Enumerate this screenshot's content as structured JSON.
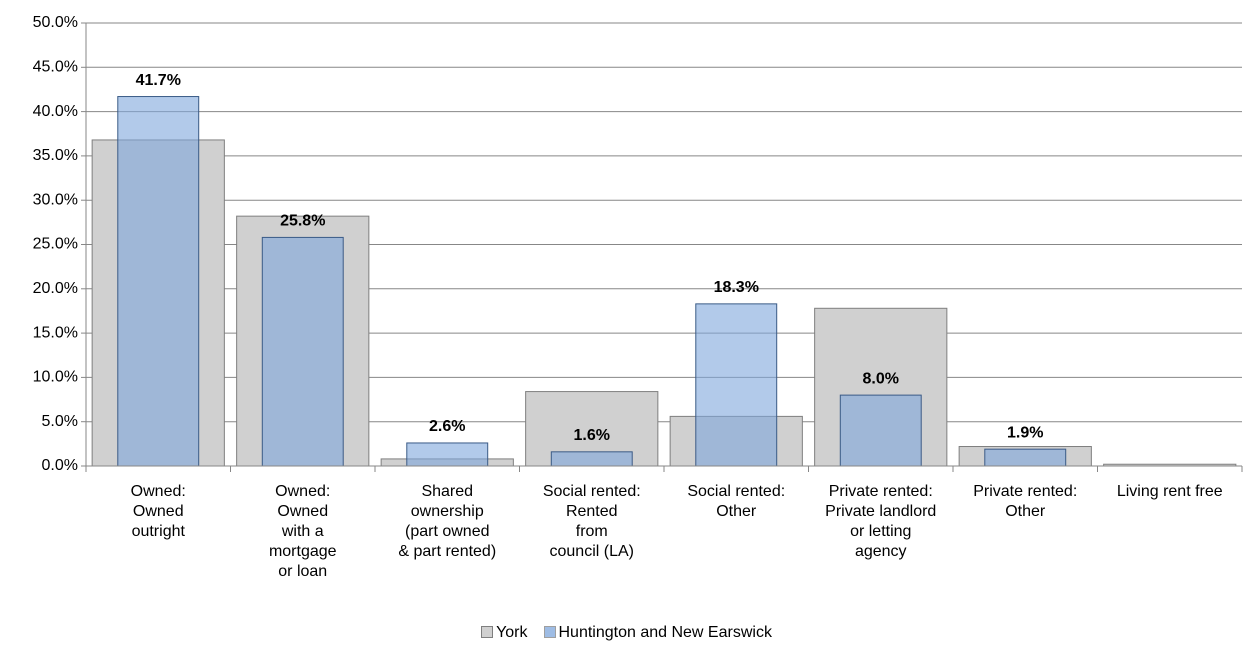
{
  "chart_data": {
    "type": "bar",
    "categories": [
      "Owned:\nOwned\noutright",
      "Owned:\nOwned\nwith a\nmortgage\nor loan",
      "Shared\nownership\n(part owned\n& part rented)",
      "Social rented:\nRented\nfrom\ncouncil (LA)",
      "Social rented:\nOther",
      "Private rented:\nPrivate landlord\nor letting\nagency",
      "Private rented:\nOther",
      "Living rent free"
    ],
    "series": [
      {
        "name": "York",
        "color": "#d0d0d0",
        "values": [
          36.8,
          28.2,
          0.8,
          8.4,
          5.6,
          17.8,
          2.2,
          0.2
        ]
      },
      {
        "name": "Huntington and New Earswick",
        "color": "#7ea6dc",
        "values": [
          41.7,
          25.8,
          2.6,
          1.6,
          18.3,
          8.0,
          1.9,
          0
        ],
        "value_labels": [
          "41.7%",
          "25.8%",
          "2.6%",
          "1.6%",
          "18.3%",
          "8.0%",
          "1.9%",
          null
        ]
      }
    ],
    "ylim": [
      0,
      50
    ],
    "yticks": [
      {
        "value": 0,
        "label": "0.0%"
      },
      {
        "value": 5,
        "label": "5.0%"
      },
      {
        "value": 10,
        "label": "10.0%"
      },
      {
        "value": 15,
        "label": "15.0%"
      },
      {
        "value": 20,
        "label": "20.0%"
      },
      {
        "value": 25,
        "label": "25.0%"
      },
      {
        "value": 30,
        "label": "30.0%"
      },
      {
        "value": 35,
        "label": "35.0%"
      },
      {
        "value": 40,
        "label": "40.0%"
      },
      {
        "value": 45,
        "label": "45.0%"
      },
      {
        "value": 50,
        "label": "50.0%"
      }
    ],
    "grid": true,
    "legend": "bottom"
  }
}
